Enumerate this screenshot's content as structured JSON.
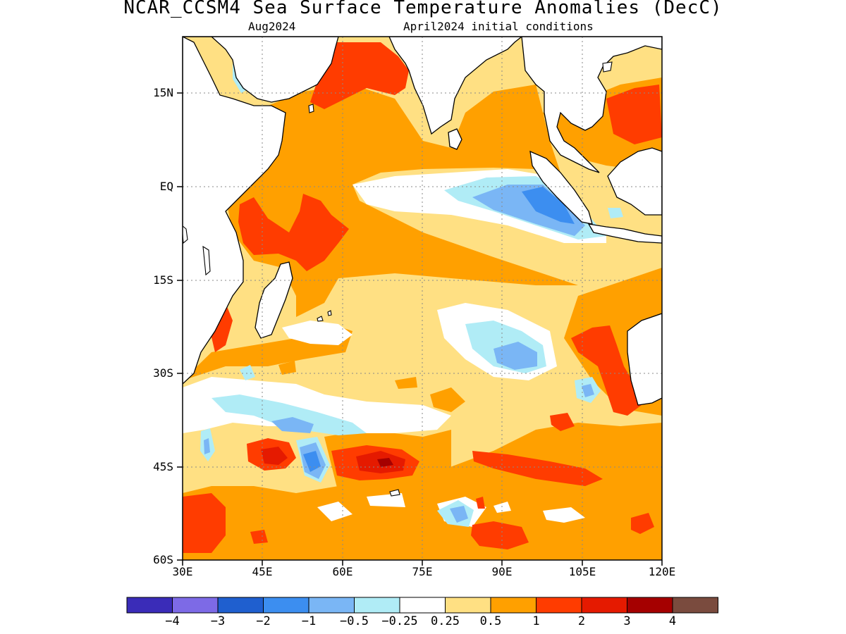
{
  "title": "NCAR_CCSM4 Sea Surface Temperature Anomalies (DecC)",
  "subtitle_left": "Aug2024",
  "subtitle_right": "April2024 initial conditions",
  "y_axis": {
    "labels": [
      "15N",
      "EQ",
      "15S",
      "30S",
      "45S",
      "60S"
    ],
    "values": [
      15,
      0,
      -15,
      -30,
      -45,
      -60
    ],
    "range": [
      -60,
      22
    ]
  },
  "x_axis": {
    "labels": [
      "30E",
      "45E",
      "60E",
      "75E",
      "90E",
      "105E",
      "120E"
    ],
    "values": [
      30,
      45,
      60,
      75,
      90,
      105,
      120
    ],
    "range": [
      30,
      120
    ]
  },
  "grid": "dotted",
  "colorbar": {
    "labels": [
      "−4",
      "−3",
      "−2",
      "−1",
      "−0.5",
      "−0.25",
      "0.25",
      "0.5",
      "1",
      "2",
      "3",
      "4"
    ],
    "colors": [
      "#3a2cb8",
      "#7d6ae6",
      "#1f5fcf",
      "#3c8ef0",
      "#7ab6f5",
      "#b0ecf6",
      "#ffffff",
      "#ffe083",
      "#ffa000",
      "#ff3c00",
      "#e51a00",
      "#a50000",
      "#7a4b3e"
    ]
  },
  "anomaly_colors": {
    "weak_positive": "#ffe083",
    "positive": "#ffa000",
    "strong_positive": "#ff3c00",
    "very_strong_positive": "#e51a00",
    "extreme_positive": "#a50000",
    "weak_negative": "#b0ecf6",
    "moderate_negative": "#7ab6f5",
    "strong_negative": "#3c8ef0"
  }
}
